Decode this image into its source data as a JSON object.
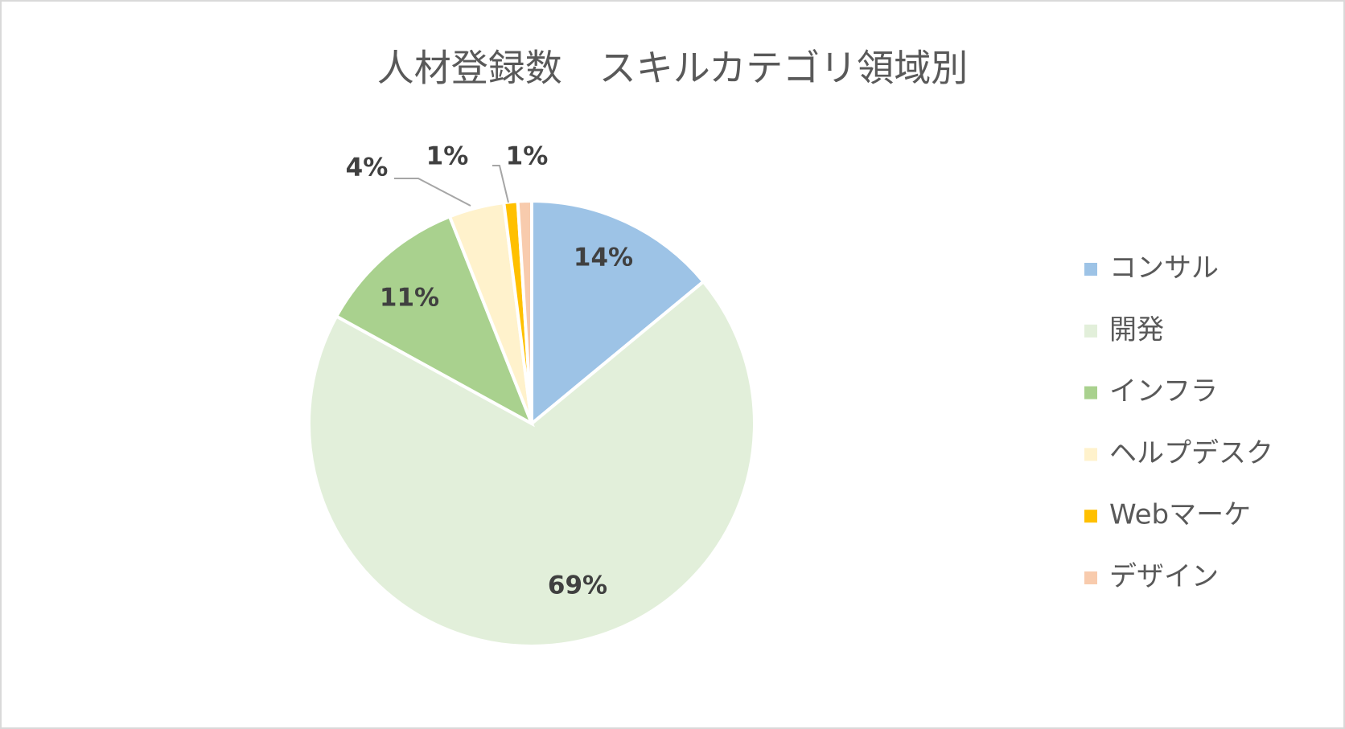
{
  "chart_data": {
    "type": "pie",
    "title": "人材登録数　スキルカテゴリ領域別",
    "categories": [
      "コンサル",
      "開発",
      "インフラ",
      "ヘルプデスク",
      "Webマーケ",
      "デザイン"
    ],
    "values": [
      14,
      69,
      11,
      4,
      1,
      1
    ],
    "value_labels": [
      "14%",
      "69%",
      "11%",
      "4%",
      "1%",
      "1%"
    ],
    "colors": [
      "#9dc3e6",
      "#e2efda",
      "#a9d18e",
      "#fff2cc",
      "#ffc000",
      "#f8cbad"
    ],
    "legend": "right"
  }
}
